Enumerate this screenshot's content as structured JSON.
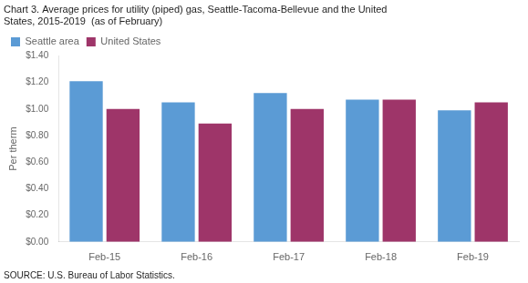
{
  "chart_data": {
    "type": "bar",
    "title": "Chart 3. Average prices for utility (piped) gas, Seattle-Tacoma-Bellevue and the United\nStates, 2015-2019  (as of February)",
    "ylabel": "Per therm",
    "annotations": [
      "SOURCE: U.S. Bureau of Labor Statistics."
    ],
    "categories": [
      "Feb-15",
      "Feb-16",
      "Feb-17",
      "Feb-18",
      "Feb-19"
    ],
    "series": [
      {
        "name": "Seattle area",
        "color": "#5b9bd5",
        "values": [
          1.21,
          1.05,
          1.12,
          1.07,
          0.99
        ]
      },
      {
        "name": "United States",
        "color": "#9e3569",
        "values": [
          1.0,
          0.89,
          1.0,
          1.07,
          1.05
        ]
      }
    ],
    "ylim": [
      0,
      1.4
    ],
    "yticks": [
      {
        "value": 0.0,
        "label": "$0.00"
      },
      {
        "value": 0.2,
        "label": "$0.20"
      },
      {
        "value": 0.4,
        "label": "$0.40"
      },
      {
        "value": 0.6,
        "label": "$0.60"
      },
      {
        "value": 0.8,
        "label": "$0.80"
      },
      {
        "value": 1.0,
        "label": "$1.00"
      },
      {
        "value": 1.2,
        "label": "$1.20"
      },
      {
        "value": 1.4,
        "label": "$1.40"
      }
    ],
    "grid": false,
    "legend": "top"
  }
}
